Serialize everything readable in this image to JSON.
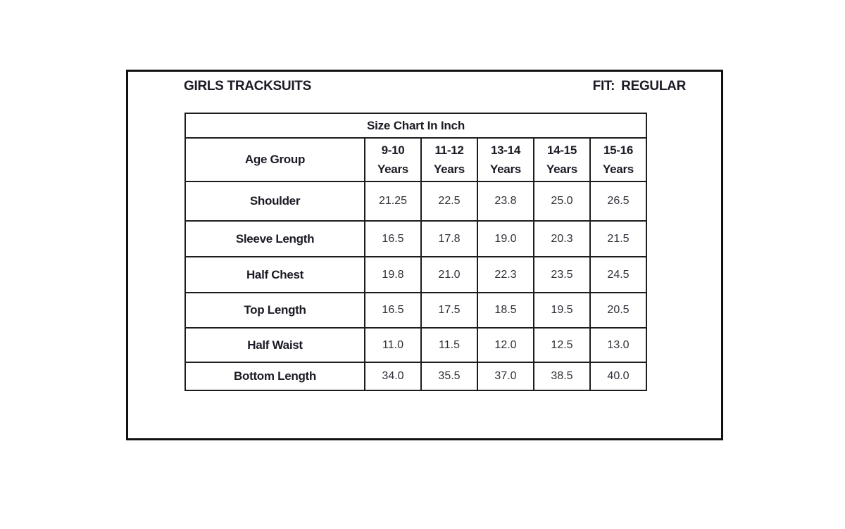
{
  "page": {
    "title": "GIRLS TRACKSUITS",
    "fit_label": "FIT:",
    "fit_value": "REGULAR"
  },
  "chart_data": {
    "type": "table",
    "title": "Size Chart In Inch",
    "unit": "Inch",
    "corner_label": "Age Group",
    "columns": [
      {
        "range": "9-10",
        "unit": "Years"
      },
      {
        "range": "11-12",
        "unit": "Years"
      },
      {
        "range": "13-14",
        "unit": "Years"
      },
      {
        "range": "14-15",
        "unit": "Years"
      },
      {
        "range": "15-16",
        "unit": "Years"
      }
    ],
    "rows": [
      {
        "label": "Shoulder",
        "values": [
          "21.25",
          "22.5",
          "23.8",
          "25.0",
          "26.5"
        ]
      },
      {
        "label": "Sleeve Length",
        "values": [
          "16.5",
          "17.8",
          "19.0",
          "20.3",
          "21.5"
        ]
      },
      {
        "label": "Half Chest",
        "values": [
          "19.8",
          "21.0",
          "22.3",
          "23.5",
          "24.5"
        ]
      },
      {
        "label": "Top Length",
        "values": [
          "16.5",
          "17.5",
          "18.5",
          "19.5",
          "20.5"
        ]
      },
      {
        "label": "Half Waist",
        "values": [
          "11.0",
          "11.5",
          "12.0",
          "12.5",
          "13.0"
        ]
      },
      {
        "label": "Bottom Length",
        "values": [
          "34.0",
          "35.5",
          "37.0",
          "38.5",
          "40.0"
        ]
      }
    ]
  }
}
